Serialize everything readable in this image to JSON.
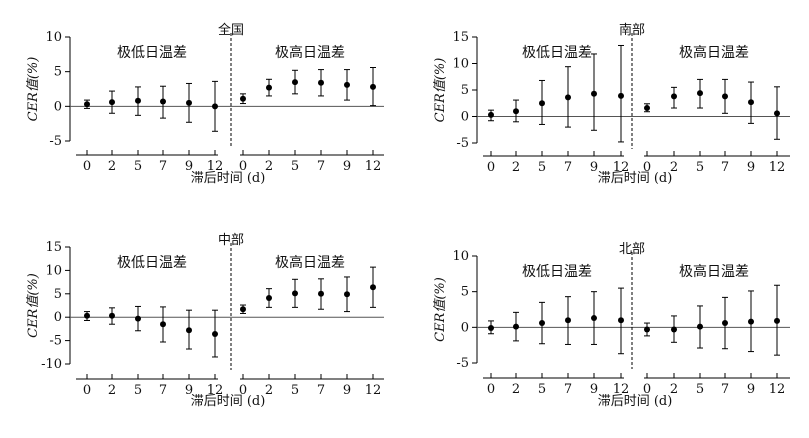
{
  "chart_data": [
    {
      "type": "scatter",
      "title": "全国",
      "xlabel": "滞后时间 (d)",
      "ylabel": "CER值(%)",
      "ylim": [
        -5,
        10
      ],
      "yticks": [
        -5,
        0,
        5,
        10
      ],
      "xtick_labels": [
        "0",
        "2",
        "5",
        "7",
        "9",
        "12"
      ],
      "groups": [
        "极低日温差",
        "极高日温差"
      ],
      "series": [
        {
          "name": "极低日温差",
          "x": [
            "0",
            "2",
            "5",
            "7",
            "9",
            "12"
          ],
          "values": [
            0.3,
            0.6,
            0.8,
            0.7,
            0.5,
            0.0
          ],
          "lower": [
            -0.3,
            -1.0,
            -1.3,
            -1.7,
            -2.3,
            -3.6
          ],
          "upper": [
            0.9,
            2.2,
            2.8,
            2.9,
            3.3,
            3.6
          ]
        },
        {
          "name": "极高日温差",
          "x": [
            "0",
            "2",
            "5",
            "7",
            "9",
            "12"
          ],
          "values": [
            1.1,
            2.7,
            3.5,
            3.4,
            3.1,
            2.8
          ],
          "lower": [
            0.4,
            1.5,
            1.8,
            1.5,
            0.9,
            0.1
          ],
          "upper": [
            1.8,
            3.9,
            5.2,
            5.3,
            5.3,
            5.6
          ]
        }
      ]
    },
    {
      "type": "scatter",
      "title": "南部",
      "xlabel": "滞后时间 (d)",
      "ylabel": "CER值(%)",
      "ylim": [
        -5,
        15
      ],
      "yticks": [
        -5,
        0,
        5,
        10,
        15
      ],
      "xtick_labels": [
        "0",
        "2",
        "5",
        "7",
        "9",
        "12"
      ],
      "groups": [
        "极低日温差",
        "极高日温差"
      ],
      "series": [
        {
          "name": "极低日温差",
          "x": [
            "0",
            "2",
            "5",
            "7",
            "9",
            "12"
          ],
          "values": [
            0.3,
            1.0,
            2.5,
            3.6,
            4.3,
            3.9
          ],
          "lower": [
            -0.8,
            -1.0,
            -1.5,
            -2.0,
            -2.6,
            -4.8
          ],
          "upper": [
            1.2,
            3.1,
            6.8,
            9.4,
            11.8,
            13.4
          ]
        },
        {
          "name": "极高日温差",
          "x": [
            "0",
            "2",
            "5",
            "7",
            "9",
            "12"
          ],
          "values": [
            1.6,
            3.8,
            4.4,
            3.8,
            2.7,
            0.6
          ],
          "lower": [
            0.9,
            1.6,
            1.6,
            0.6,
            -1.3,
            -4.3
          ],
          "upper": [
            2.4,
            5.5,
            7.0,
            7.0,
            6.5,
            5.6
          ]
        }
      ]
    },
    {
      "type": "scatter",
      "title": "中部",
      "xlabel": "滞后时间 (d)",
      "ylabel": "CER值(%)",
      "ylim": [
        -10,
        15
      ],
      "yticks": [
        -10,
        -5,
        0,
        5,
        10,
        15
      ],
      "xtick_labels": [
        "0",
        "2",
        "5",
        "7",
        "9",
        "12"
      ],
      "groups": [
        "极低日温差",
        "极高日温差"
      ],
      "series": [
        {
          "name": "极低日温差",
          "x": [
            "0",
            "2",
            "5",
            "7",
            "9",
            "12"
          ],
          "values": [
            0.3,
            0.3,
            -0.3,
            -1.5,
            -2.8,
            -3.6
          ],
          "lower": [
            -0.7,
            -1.5,
            -2.9,
            -5.3,
            -6.8,
            -8.5
          ],
          "upper": [
            1.2,
            2.0,
            2.3,
            2.2,
            1.5,
            1.5
          ]
        },
        {
          "name": "极高日温差",
          "x": [
            "0",
            "2",
            "5",
            "7",
            "9",
            "12"
          ],
          "values": [
            1.7,
            4.1,
            5.1,
            5.0,
            4.9,
            6.4
          ],
          "lower": [
            0.8,
            2.1,
            2.1,
            1.7,
            1.2,
            2.1
          ],
          "upper": [
            2.6,
            6.1,
            8.1,
            8.2,
            8.6,
            10.7
          ]
        }
      ]
    },
    {
      "type": "scatter",
      "title": "北部",
      "xlabel": "滞后时间 (d)",
      "ylabel": "CER值(%)",
      "ylim": [
        -5,
        10
      ],
      "yticks": [
        -5,
        0,
        5,
        10
      ],
      "xtick_labels": [
        "0",
        "2",
        "5",
        "7",
        "9",
        "12"
      ],
      "groups": [
        "极低日温差",
        "极高日温差"
      ],
      "series": [
        {
          "name": "极低日温差",
          "x": [
            "0",
            "2",
            "5",
            "7",
            "9",
            "12"
          ],
          "values": [
            -0.1,
            0.1,
            0.6,
            1.0,
            1.3,
            1.0
          ],
          "lower": [
            -0.9,
            -1.9,
            -2.3,
            -2.4,
            -2.4,
            -3.7
          ],
          "upper": [
            0.9,
            2.1,
            3.5,
            4.3,
            5.0,
            5.5
          ]
        },
        {
          "name": "极高日温差",
          "x": [
            "0",
            "2",
            "5",
            "7",
            "9",
            "12"
          ],
          "values": [
            -0.3,
            -0.3,
            0.1,
            0.6,
            0.8,
            0.9
          ],
          "lower": [
            -1.2,
            -2.1,
            -2.9,
            -3.0,
            -3.4,
            -3.9
          ],
          "upper": [
            0.6,
            1.6,
            3.0,
            4.2,
            5.1,
            5.9
          ]
        }
      ]
    }
  ]
}
